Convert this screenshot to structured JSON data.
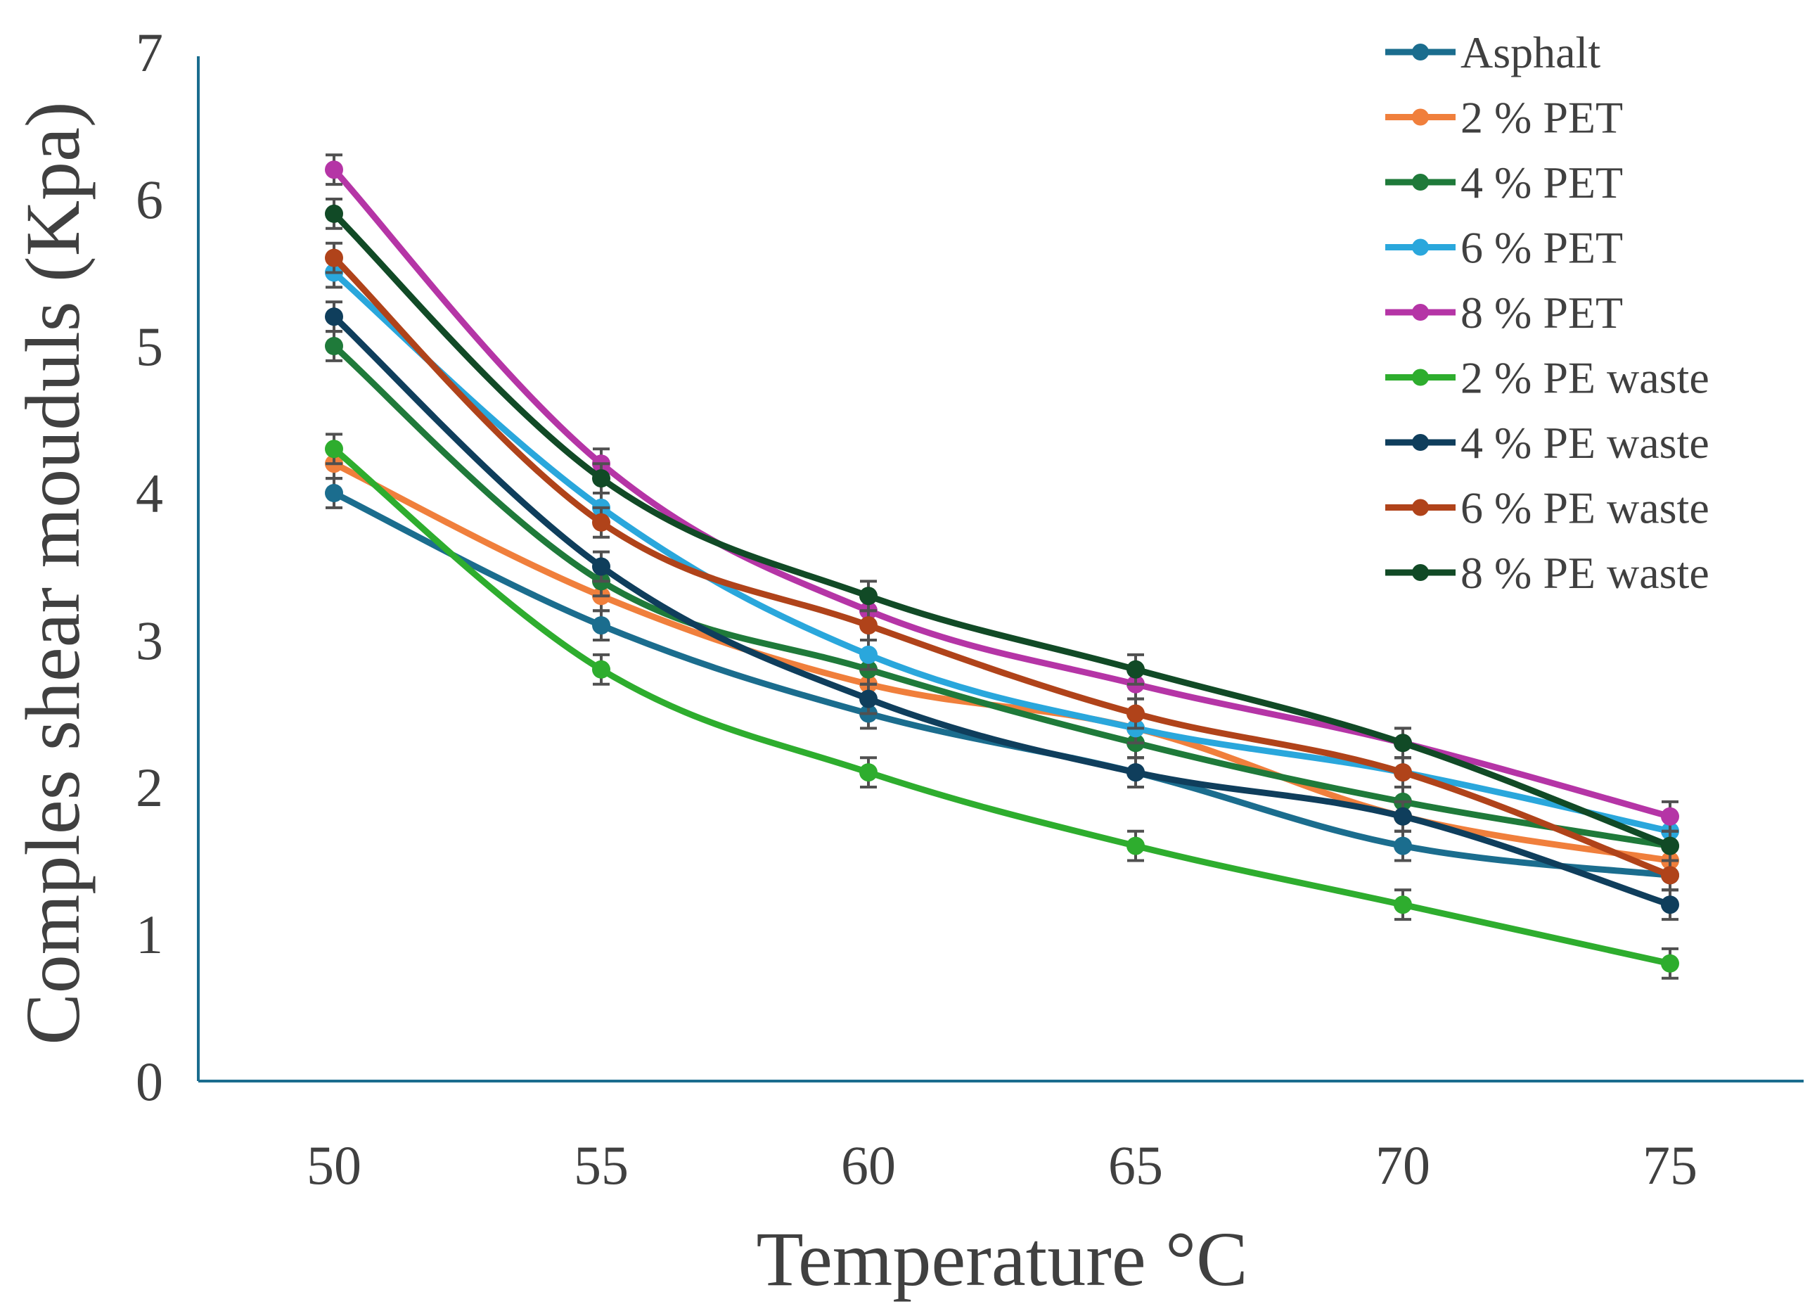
{
  "chart_data": {
    "type": "line",
    "title": "",
    "xlabel": "Temperature °C",
    "ylabel": "Comples shear mouduls (Kpa)",
    "x": [
      50,
      55,
      60,
      65,
      70,
      75
    ],
    "x_tick_labels": [
      "50",
      "55",
      "60",
      "65",
      "70",
      "75"
    ],
    "y_tick_labels": [
      "0",
      "1",
      "2",
      "3",
      "4",
      "5",
      "6",
      "7"
    ],
    "ylim": [
      0,
      7
    ],
    "grid": false,
    "legend": "top-right",
    "error_bar": 0.1,
    "series": [
      {
        "name": "Asphalt",
        "color": "#1b6d8e",
        "values": [
          4.0,
          3.1,
          2.5,
          2.1,
          1.6,
          1.4
        ]
      },
      {
        "name": "2 % PET",
        "color": "#f07f3c",
        "values": [
          4.2,
          3.3,
          2.7,
          2.4,
          1.8,
          1.5
        ]
      },
      {
        "name": "4 % PET",
        "color": "#1f7a3a",
        "values": [
          5.0,
          3.4,
          2.8,
          2.3,
          1.9,
          1.6
        ]
      },
      {
        "name": "6 % PET",
        "color": "#2aa7dc",
        "values": [
          5.5,
          3.9,
          2.9,
          2.4,
          2.1,
          1.7
        ]
      },
      {
        "name": "8 % PET",
        "color": "#b535a6",
        "values": [
          6.2,
          4.2,
          3.2,
          2.7,
          2.3,
          1.8
        ]
      },
      {
        "name": "2 % PE waste",
        "color": "#2ead2e",
        "values": [
          4.3,
          2.8,
          2.1,
          1.6,
          1.2,
          0.8
        ]
      },
      {
        "name": "4 % PE waste",
        "color": "#0f3e5c",
        "values": [
          5.2,
          3.5,
          2.6,
          2.1,
          1.8,
          1.2
        ]
      },
      {
        "name": "6 % PE waste",
        "color": "#b0431a",
        "values": [
          5.6,
          3.8,
          3.1,
          2.5,
          2.1,
          1.4
        ]
      },
      {
        "name": "8 % PE waste",
        "color": "#114a26",
        "values": [
          5.9,
          4.1,
          3.3,
          2.8,
          2.3,
          1.6
        ]
      }
    ]
  }
}
